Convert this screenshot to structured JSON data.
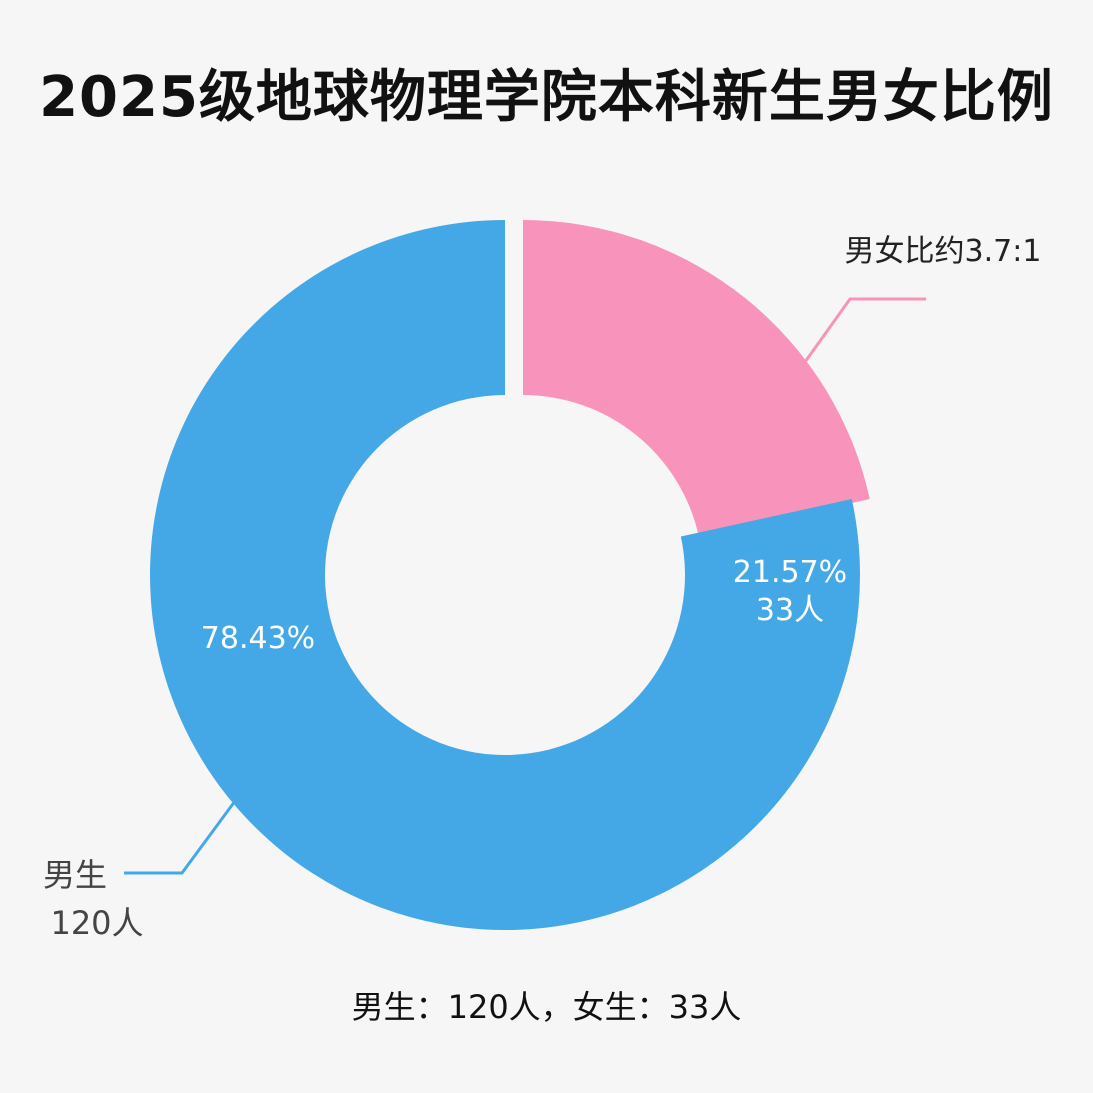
{
  "title": "2025级地球物理学院本科新生男女比例",
  "chart_data": {
    "type": "pie",
    "variant": "donut",
    "title": "2025级地球物理学院本科新生男女比例",
    "categories": [
      "男生",
      "女生"
    ],
    "values": [
      120,
      33
    ],
    "percent_labels": [
      "78.43%",
      "21.57%"
    ],
    "count_labels": [
      "120人",
      "33人"
    ],
    "colors": [
      "#45a8e6",
      "#f893bb"
    ],
    "outside_labels": [
      {
        "line1": "男生",
        "line2": "120人"
      },
      {
        "line1": "男女比约3.7:1",
        "line2": ""
      }
    ],
    "legend": "none"
  },
  "caption": "男生：120人，女生：33人"
}
